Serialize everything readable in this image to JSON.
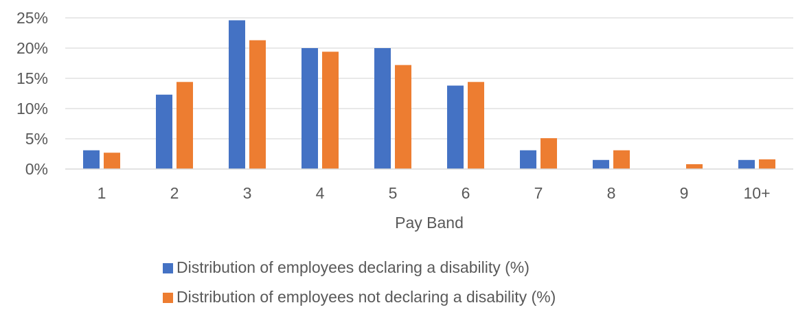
{
  "chart_data": {
    "type": "bar",
    "title": "",
    "xlabel": "Pay Band",
    "ylabel": "",
    "categories": [
      "1",
      "2",
      "3",
      "4",
      "5",
      "6",
      "7",
      "8",
      "9",
      "10+"
    ],
    "series": [
      {
        "name": "Distribution of employees declaring a disability (%)",
        "color": "#4472C4",
        "values": [
          3.1,
          12.3,
          24.6,
          20.0,
          20.0,
          13.8,
          3.1,
          1.5,
          0,
          1.5
        ]
      },
      {
        "name": "Distribution of employees not declaring a disability (%)",
        "color": "#ED7D31",
        "values": [
          2.7,
          14.4,
          21.3,
          19.4,
          17.2,
          14.4,
          5.1,
          3.1,
          0.8,
          1.6
        ]
      }
    ],
    "yticks": [
      "0%",
      "5%",
      "10%",
      "15%",
      "20%",
      "25%"
    ],
    "ylim": [
      0,
      25
    ],
    "grid": true,
    "legend_position": "bottom"
  }
}
